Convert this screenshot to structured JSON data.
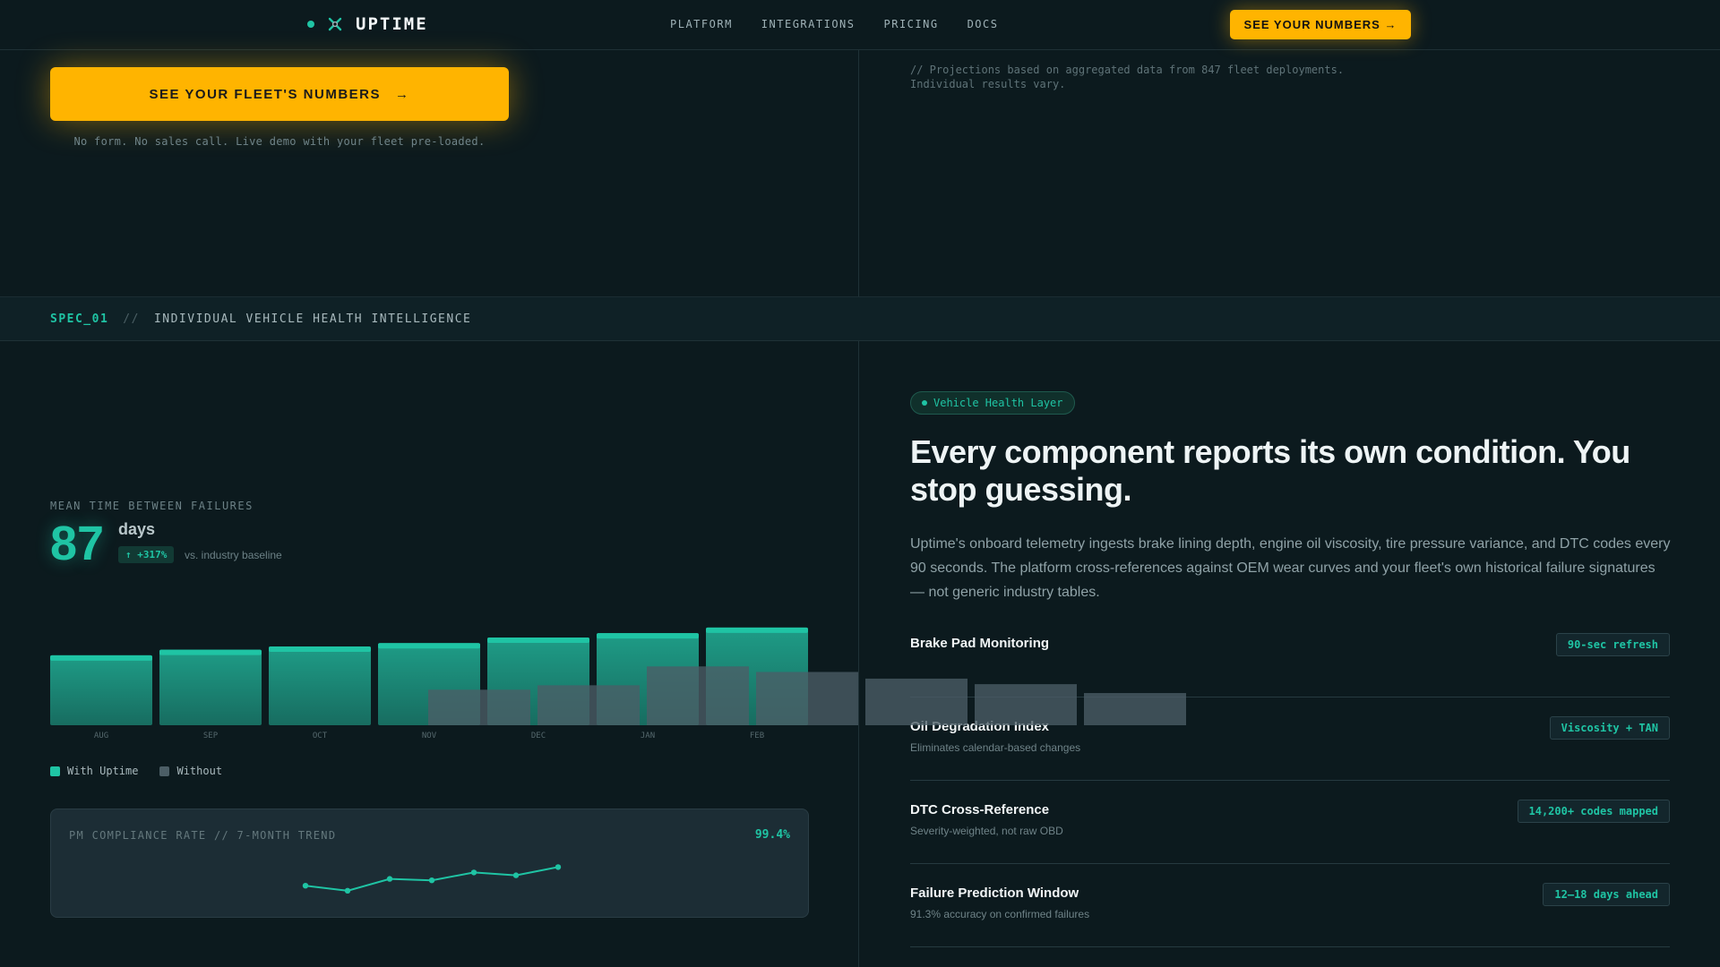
{
  "nav": {
    "logo_text": "UPTIME",
    "links": [
      "PLATFORM",
      "INTEGRATIONS",
      "PRICING",
      "DOCS"
    ],
    "cta_label": "SEE YOUR NUMBERS →"
  },
  "hero": {
    "cta_label": "SEE YOUR FLEET'S NUMBERS",
    "cta_arrow": "→",
    "cta_sub": "No form. No sales call. Live demo with your fleet pre-loaded.",
    "projection_note_line1": "// Projections based on aggregated data from 847 fleet deployments.",
    "projection_note_line2": "Individual results vary."
  },
  "spec": {
    "id": "SPEC_01",
    "sep": "//",
    "title": "INDIVIDUAL VEHICLE HEALTH INTELLIGENCE"
  },
  "mtbf": {
    "label": "MEAN TIME BETWEEN FAILURES",
    "value": "87",
    "unit": "days",
    "badge": "↑ +317%",
    "vs_text": "vs. industry baseline"
  },
  "chart_data": {
    "type": "bar",
    "categories": [
      "AUG",
      "SEP",
      "OCT",
      "NOV",
      "DEC",
      "JAN",
      "FEB"
    ],
    "series": [
      {
        "name": "With Uptime",
        "values": [
          63,
          68,
          71,
          74,
          79,
          83,
          88
        ]
      },
      {
        "name": "Without",
        "values": [
          32,
          36,
          53,
          48,
          42,
          37,
          29
        ]
      }
    ],
    "ylim": [
      0,
      100
    ],
    "colors": {
      "with_uptime": "#1fa38c",
      "with_uptime_top": "#1fc4a4",
      "without": "#4c5e66"
    }
  },
  "legend": {
    "with_label": "With Uptime",
    "without_label": "Without"
  },
  "pm": {
    "title": "PM COMPLIANCE RATE // 7-MONTH TREND",
    "value": "99.4%",
    "trend": [
      94.2,
      92.8,
      96.1,
      95.7,
      97.9,
      97.1,
      99.4
    ]
  },
  "right": {
    "pill": "Vehicle Health Layer",
    "headline": "Every component reports its own condition. You stop guessing.",
    "body": "Uptime's onboard telemetry ingests brake lining depth, engine oil viscosity, tire pressure variance, and DTC codes every 90 seconds. The platform cross-references against OEM wear curves and your fleet's own historical failure signatures — not generic industry tables.",
    "features": [
      {
        "title": "Brake Pad Monitoring",
        "subtitle": "",
        "tag": "90-sec refresh"
      },
      {
        "title": "Oil Degradation Index",
        "subtitle": "Eliminates calendar-based changes",
        "tag": "Viscosity + TAN"
      },
      {
        "title": "DTC Cross-Reference",
        "subtitle": "Severity-weighted, not raw OBD",
        "tag": "14,200+ codes mapped"
      },
      {
        "title": "Failure Prediction Window",
        "subtitle": "91.3% accuracy on confirmed failures",
        "tag": "12–18 days ahead"
      }
    ]
  }
}
